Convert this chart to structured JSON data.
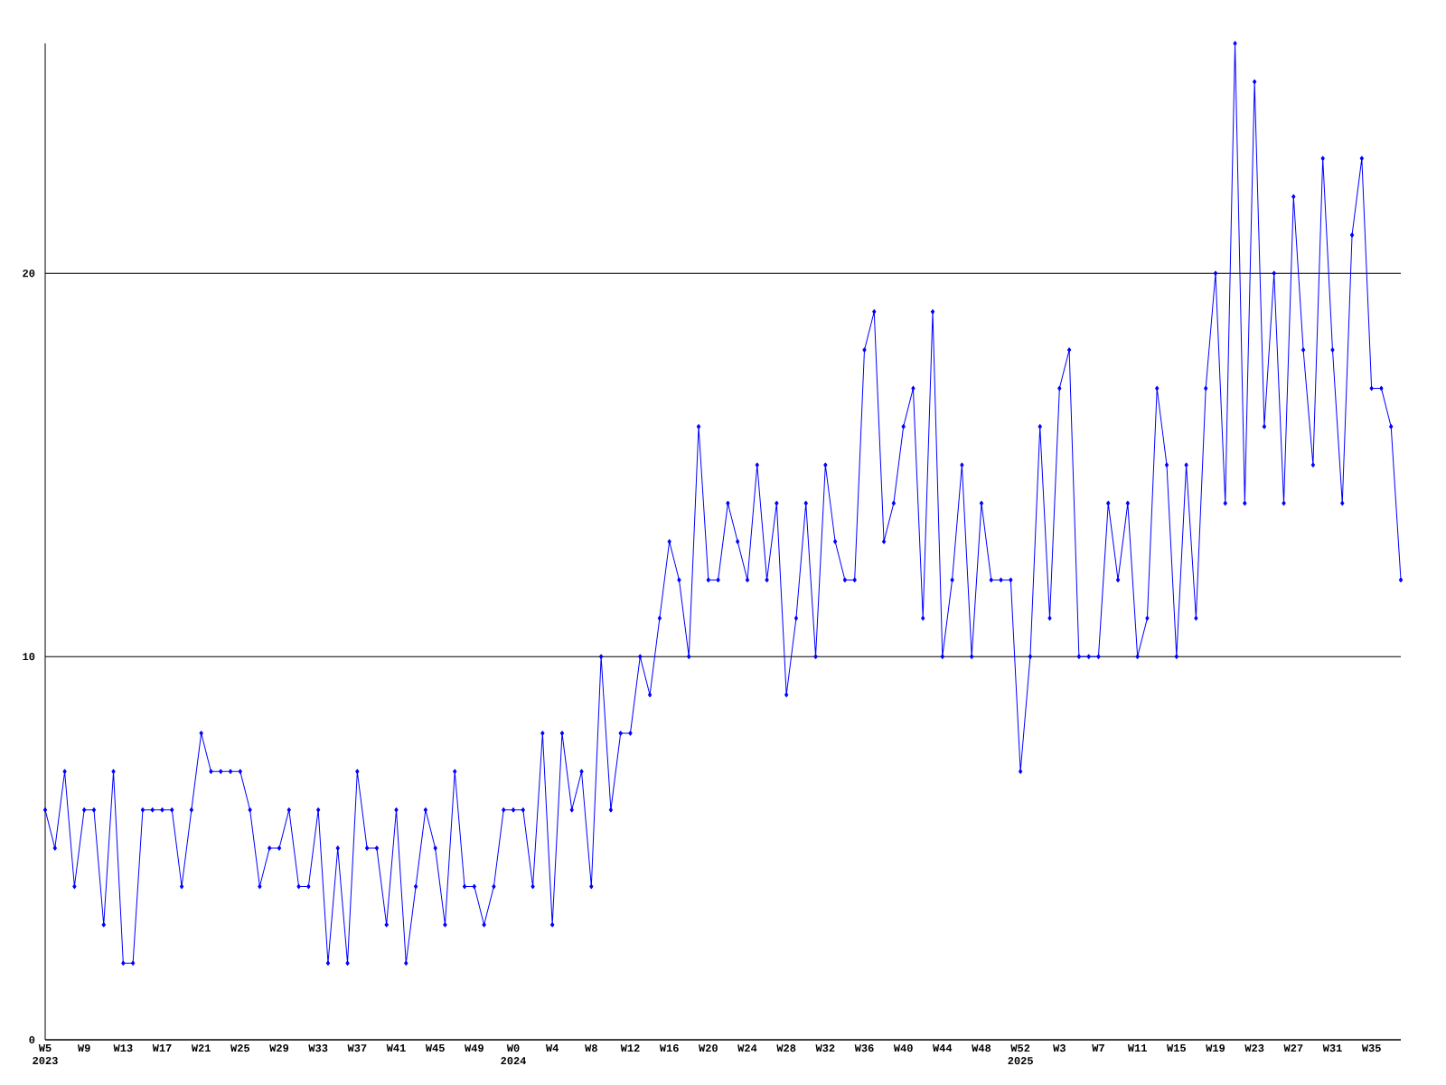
{
  "chart_data": {
    "type": "line",
    "color": "#0000ff",
    "marker": "diamond",
    "grid": "y",
    "categories": [
      "W5 2023",
      null,
      null,
      null,
      "W9",
      null,
      null,
      null,
      "W13",
      null,
      null,
      null,
      "W17",
      null,
      null,
      null,
      "W21",
      null,
      null,
      null,
      "W25",
      null,
      null,
      null,
      "W29",
      null,
      null,
      null,
      "W33",
      null,
      null,
      null,
      "W37",
      null,
      null,
      null,
      "W41",
      null,
      null,
      null,
      "W45",
      null,
      null,
      null,
      "W49",
      null,
      null,
      null,
      "W0 2024",
      null,
      null,
      null,
      "W4",
      null,
      null,
      null,
      "W8",
      null,
      null,
      null,
      "W12",
      null,
      null,
      null,
      "W16",
      null,
      null,
      null,
      "W20",
      null,
      null,
      null,
      "W24",
      null,
      null,
      null,
      "W28",
      null,
      null,
      null,
      "W32",
      null,
      null,
      null,
      "W36",
      null,
      null,
      null,
      "W40",
      null,
      null,
      null,
      "W44",
      null,
      null,
      null,
      "W48",
      null,
      null,
      null,
      "W52 2025",
      null,
      null,
      null,
      "W3",
      null,
      null,
      null,
      "W7",
      null,
      null,
      null,
      "W11",
      null,
      null,
      null,
      "W15",
      null,
      null,
      null,
      "W19",
      null,
      null,
      null,
      "W23",
      null,
      null,
      null,
      "W27",
      null,
      null,
      null,
      "W31",
      null,
      null,
      null,
      "W35",
      null,
      null,
      null
    ],
    "values": [
      6,
      5,
      7,
      4,
      6,
      6,
      3,
      7,
      2,
      2,
      6,
      6,
      6,
      6,
      4,
      6,
      8,
      7,
      7,
      7,
      7,
      6,
      4,
      5,
      5,
      6,
      4,
      4,
      6,
      2,
      5,
      2,
      7,
      5,
      5,
      3,
      6,
      2,
      4,
      6,
      5,
      3,
      7,
      4,
      4,
      3,
      4,
      6,
      6,
      6,
      4,
      8,
      3,
      8,
      6,
      7,
      4,
      10,
      6,
      8,
      8,
      10,
      9,
      11,
      13,
      12,
      10,
      16,
      12,
      12,
      14,
      13,
      12,
      15,
      12,
      14,
      9,
      11,
      14,
      10,
      15,
      13,
      12,
      12,
      18,
      19,
      13,
      14,
      16,
      17,
      11,
      19,
      10,
      12,
      15,
      10,
      14,
      12,
      12,
      12,
      7,
      10,
      16,
      11,
      17,
      18,
      10,
      10,
      10,
      14,
      12,
      14,
      10,
      11,
      17,
      15,
      10,
      15,
      11,
      17,
      20,
      14,
      26,
      14,
      25,
      16,
      20,
      14,
      22,
      18,
      15,
      23,
      18,
      14,
      21,
      23,
      17,
      17,
      16,
      12
    ],
    "ylim": [
      0,
      26
    ],
    "yticks": [
      0,
      10,
      20
    ]
  }
}
